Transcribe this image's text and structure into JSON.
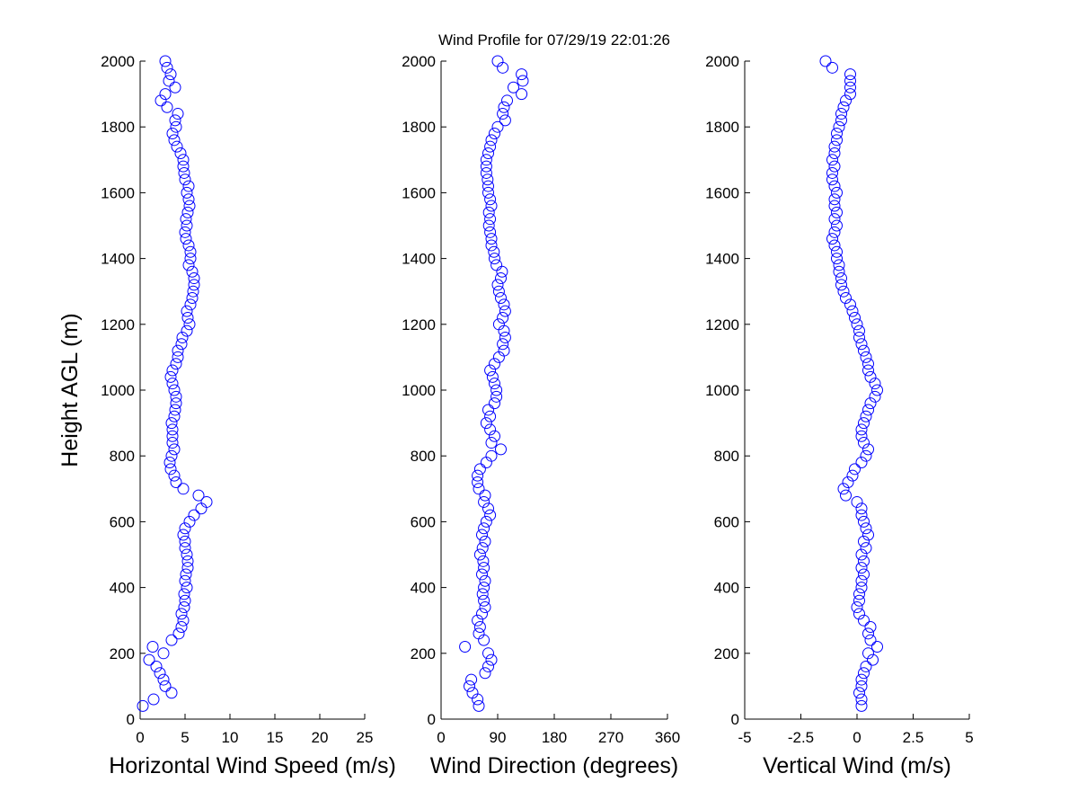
{
  "chart_data": [
    {
      "type": "scatter",
      "xlabel": "Horizontal Wind Speed (m/s)",
      "ylabel": "Height AGL (m)",
      "color": "#0000ff",
      "xlim": [
        0,
        25
      ],
      "xticks": [
        0,
        5,
        10,
        15,
        20,
        25
      ],
      "ylim": [
        0,
        2000
      ],
      "yticks": [
        0,
        200,
        400,
        600,
        800,
        1000,
        1200,
        1400,
        1600,
        1800,
        2000
      ],
      "x": [
        0.3,
        1.5,
        3.5,
        2.8,
        2.6,
        2.2,
        1.8,
        1.0,
        2.6,
        1.4,
        3.5,
        4.3,
        4.6,
        4.8,
        4.6,
        4.9,
        5.0,
        4.9,
        5.2,
        5.0,
        5.1,
        5.3,
        5.3,
        5.2,
        5.0,
        5.0,
        4.8,
        5.0,
        5.5,
        6.0,
        6.8,
        7.4,
        6.5,
        4.8,
        4.0,
        3.8,
        3.4,
        3.3,
        3.5,
        3.8,
        3.6,
        3.6,
        3.6,
        3.5,
        3.8,
        3.9,
        4.0,
        4.0,
        3.8,
        3.6,
        3.4,
        3.6,
        4.0,
        4.2,
        4.2,
        4.6,
        4.7,
        5.2,
        5.5,
        5.3,
        5.2,
        5.6,
        5.8,
        5.9,
        6.0,
        6.0,
        5.8,
        5.4,
        5.6,
        5.6,
        5.4,
        5.1,
        5.0,
        5.2,
        5.1,
        5.3,
        5.5,
        5.4,
        5.2,
        5.4,
        5.0,
        4.9,
        4.8,
        4.8,
        4.5,
        4.1,
        3.8,
        3.6,
        4.0,
        3.9,
        4.2,
        3.0,
        2.3,
        2.8,
        3.9,
        3.2,
        3.4,
        3.0,
        2.8
      ],
      "y": [
        40,
        60,
        80,
        100,
        120,
        140,
        160,
        180,
        200,
        220,
        240,
        260,
        280,
        300,
        320,
        340,
        360,
        380,
        400,
        420,
        440,
        460,
        480,
        500,
        520,
        540,
        560,
        580,
        600,
        620,
        640,
        660,
        680,
        700,
        720,
        740,
        760,
        780,
        800,
        820,
        840,
        860,
        880,
        900,
        920,
        940,
        960,
        980,
        1000,
        1020,
        1040,
        1060,
        1080,
        1100,
        1120,
        1140,
        1160,
        1180,
        1200,
        1220,
        1240,
        1260,
        1280,
        1300,
        1320,
        1340,
        1360,
        1380,
        1400,
        1420,
        1440,
        1460,
        1480,
        1500,
        1520,
        1540,
        1560,
        1580,
        1600,
        1620,
        1640,
        1660,
        1680,
        1700,
        1720,
        1740,
        1760,
        1780,
        1800,
        1820,
        1840,
        1860,
        1880,
        1900,
        1920,
        1940,
        1960,
        1980,
        2000
      ]
    },
    {
      "type": "scatter",
      "title": "Wind Profile for  07/29/19 22:01:26",
      "xlabel": "Wind Direction (degrees)",
      "color": "#0000ff",
      "xlim": [
        0,
        360
      ],
      "xticks": [
        0,
        90,
        180,
        270,
        360
      ],
      "ylim": [
        0,
        2000
      ],
      "yticks": [
        0,
        200,
        400,
        600,
        800,
        1000,
        1200,
        1400,
        1600,
        1800,
        2000
      ],
      "x": [
        60,
        58,
        50,
        45,
        48,
        70,
        75,
        80,
        75,
        38,
        68,
        60,
        62,
        58,
        65,
        70,
        68,
        66,
        68,
        70,
        65,
        68,
        67,
        62,
        66,
        70,
        65,
        68,
        72,
        78,
        75,
        68,
        70,
        60,
        58,
        58,
        62,
        72,
        80,
        95,
        80,
        85,
        78,
        72,
        78,
        75,
        85,
        88,
        88,
        85,
        82,
        78,
        85,
        92,
        100,
        98,
        102,
        100,
        92,
        98,
        102,
        100,
        95,
        92,
        90,
        95,
        97,
        88,
        85,
        84,
        80,
        80,
        78,
        76,
        78,
        76,
        80,
        78,
        75,
        75,
        74,
        72,
        72,
        72,
        75,
        78,
        80,
        85,
        90,
        102,
        98,
        100,
        105,
        128,
        115,
        130,
        128,
        98,
        90
      ],
      "y": [
        40,
        60,
        80,
        100,
        120,
        140,
        160,
        180,
        200,
        220,
        240,
        260,
        280,
        300,
        320,
        340,
        360,
        380,
        400,
        420,
        440,
        460,
        480,
        500,
        520,
        540,
        560,
        580,
        600,
        620,
        640,
        660,
        680,
        700,
        720,
        740,
        760,
        780,
        800,
        820,
        840,
        860,
        880,
        900,
        920,
        940,
        960,
        980,
        1000,
        1020,
        1040,
        1060,
        1080,
        1100,
        1120,
        1140,
        1160,
        1180,
        1200,
        1220,
        1240,
        1260,
        1280,
        1300,
        1320,
        1340,
        1360,
        1380,
        1400,
        1420,
        1440,
        1460,
        1480,
        1500,
        1520,
        1540,
        1560,
        1580,
        1600,
        1620,
        1640,
        1660,
        1680,
        1700,
        1720,
        1740,
        1760,
        1780,
        1800,
        1820,
        1840,
        1860,
        1880,
        1900,
        1920,
        1940,
        1960,
        1980,
        2000
      ]
    },
    {
      "type": "scatter",
      "xlabel": "Vertical Wind (m/s)",
      "color": "#0000ff",
      "xlim": [
        -5,
        5
      ],
      "xticks": [
        -5,
        -2.5,
        0,
        2.5,
        5
      ],
      "ylim": [
        0,
        2000
      ],
      "yticks": [
        0,
        200,
        400,
        600,
        800,
        1000,
        1200,
        1400,
        1600,
        1800,
        2000
      ],
      "x": [
        0.2,
        0.2,
        0.1,
        0.2,
        0.2,
        0.3,
        0.4,
        0.7,
        0.5,
        0.9,
        0.6,
        0.5,
        0.6,
        0.3,
        0.1,
        0.0,
        0.1,
        0.1,
        0.2,
        0.2,
        0.3,
        0.2,
        0.3,
        0.2,
        0.4,
        0.3,
        0.5,
        0.4,
        0.3,
        0.2,
        0.2,
        0.0,
        -0.5,
        -0.6,
        -0.4,
        -0.2,
        -0.1,
        0.2,
        0.4,
        0.5,
        0.3,
        0.2,
        0.2,
        0.3,
        0.4,
        0.5,
        0.6,
        0.8,
        0.9,
        0.8,
        0.6,
        0.5,
        0.5,
        0.4,
        0.3,
        0.2,
        0.1,
        0.1,
        0.0,
        -0.1,
        -0.2,
        -0.3,
        -0.5,
        -0.6,
        -0.7,
        -0.7,
        -0.8,
        -0.8,
        -0.9,
        -0.9,
        -1.0,
        -1.1,
        -1.0,
        -0.9,
        -1.0,
        -0.9,
        -1.0,
        -1.0,
        -0.9,
        -1.0,
        -1.1,
        -1.1,
        -1.0,
        -1.1,
        -1.0,
        -1.0,
        -0.9,
        -0.9,
        -0.8,
        -0.7,
        -0.7,
        -0.6,
        -0.5,
        -0.3,
        -0.3,
        -0.3,
        -0.3,
        -1.1,
        -1.4
      ],
      "y": [
        40,
        60,
        80,
        100,
        120,
        140,
        160,
        180,
        200,
        220,
        240,
        260,
        280,
        300,
        320,
        340,
        360,
        380,
        400,
        420,
        440,
        460,
        480,
        500,
        520,
        540,
        560,
        580,
        600,
        620,
        640,
        660,
        680,
        700,
        720,
        740,
        760,
        780,
        800,
        820,
        840,
        860,
        880,
        900,
        920,
        940,
        960,
        980,
        1000,
        1020,
        1040,
        1060,
        1080,
        1100,
        1120,
        1140,
        1160,
        1180,
        1200,
        1220,
        1240,
        1260,
        1280,
        1300,
        1320,
        1340,
        1360,
        1380,
        1400,
        1420,
        1440,
        1460,
        1480,
        1500,
        1520,
        1540,
        1560,
        1580,
        1600,
        1620,
        1640,
        1660,
        1680,
        1700,
        1720,
        1740,
        1760,
        1780,
        1800,
        1820,
        1840,
        1860,
        1880,
        1900,
        1920,
        1940,
        1960,
        1980,
        2000
      ]
    }
  ]
}
